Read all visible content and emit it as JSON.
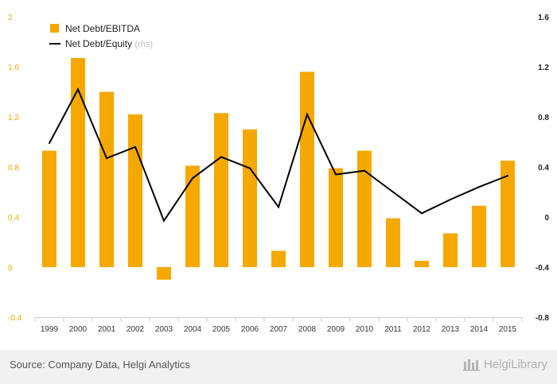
{
  "chart_data": {
    "type": "bar+line",
    "title": "",
    "categories": [
      "1999",
      "2000",
      "2001",
      "2002",
      "2003",
      "2004",
      "2005",
      "2006",
      "2007",
      "2008",
      "2009",
      "2010",
      "2011",
      "2012",
      "2013",
      "2014",
      "2015"
    ],
    "series": [
      {
        "name": "Net Debt/EBITDA",
        "type": "bar",
        "axis": "left",
        "color": "#f5a800",
        "values": [
          0.93,
          1.67,
          1.4,
          1.22,
          -0.1,
          0.81,
          1.23,
          1.1,
          0.13,
          1.56,
          0.79,
          0.93,
          0.39,
          0.05,
          0.27,
          0.49,
          0.85
        ]
      },
      {
        "name": "Net Debt/Equity",
        "name_suffix": "(rhs)",
        "type": "line",
        "axis": "right",
        "color": "#000000",
        "values": [
          0.59,
          1.02,
          0.47,
          0.56,
          -0.03,
          0.31,
          0.48,
          0.39,
          0.08,
          0.82,
          0.34,
          0.37,
          0.2,
          0.03,
          0.14,
          0.24,
          0.33
        ]
      }
    ],
    "y_left": {
      "min": -0.4,
      "max": 2,
      "ticks": [
        "-0.4",
        "0",
        "0.4",
        "0.8",
        "1.2",
        "1.6",
        "2"
      ]
    },
    "y_right": {
      "min": -0.8,
      "max": 1.6,
      "ticks": [
        "-0.8",
        "-0.4",
        "0",
        "0.4",
        "0.8",
        "1.2",
        "1.6"
      ]
    },
    "grid": false,
    "legend_position": "top-left"
  },
  "footer": {
    "source": "Source: Company Data, Helgi Analytics",
    "brand": "HelgiLibrary"
  }
}
